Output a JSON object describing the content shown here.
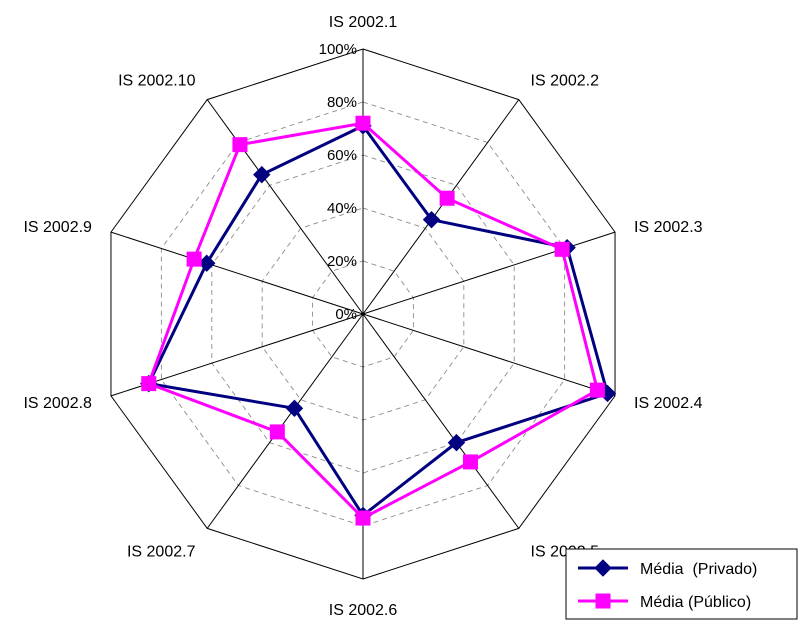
{
  "chart_data": {
    "type": "radar",
    "categories": [
      "IS 2002.1",
      "IS 2002.2",
      "IS 2002.3",
      "IS 2002.4",
      "IS 2002.5",
      "IS 2002.6",
      "IS 2002.7",
      "IS 2002.8",
      "IS 2002.9",
      "IS 2002.10"
    ],
    "ticks": [
      "0%",
      "20%",
      "40%",
      "60%",
      "80%",
      "100%"
    ],
    "rlim": [
      0,
      100
    ],
    "grid": true,
    "legend_position": "bottom-right",
    "series": [
      {
        "name": "Média  (Privado)",
        "color": "#000080",
        "marker": "diamond",
        "values": [
          71,
          44,
          81,
          97,
          60,
          76,
          44,
          85,
          62,
          65
        ]
      },
      {
        "name": "Média (Público)",
        "color": "#FF00FF",
        "marker": "square",
        "values": [
          72,
          54,
          79,
          93,
          69,
          77,
          55,
          85,
          67,
          79
        ]
      }
    ]
  }
}
